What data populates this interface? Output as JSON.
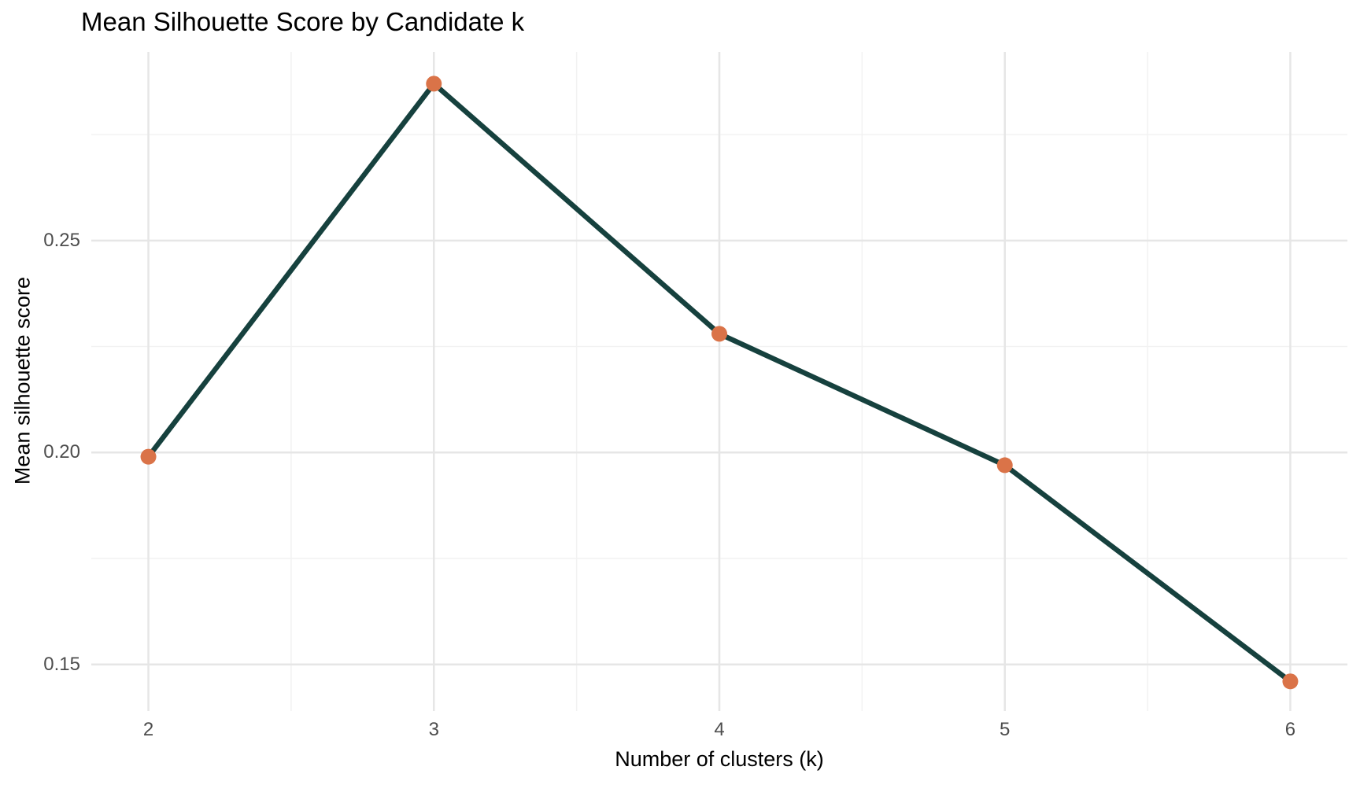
{
  "title": "Mean Silhouette Score by Candidate k",
  "chart_data": {
    "type": "line",
    "title": "Mean Silhouette Score by Candidate k",
    "xlabel": "Number of clusters (k)",
    "ylabel": "Mean silhouette score",
    "x": [
      2,
      3,
      4,
      5,
      6
    ],
    "y": [
      0.199,
      0.287,
      0.228,
      0.197,
      0.146
    ],
    "xlim": [
      1.8,
      6.2
    ],
    "ylim": [
      0.139,
      0.2945
    ],
    "x_ticks": [
      2,
      3,
      4,
      5,
      6
    ],
    "x_tick_labels": [
      "2",
      "3",
      "4",
      "5",
      "6"
    ],
    "y_ticks": [
      0.15,
      0.2,
      0.25
    ],
    "y_tick_labels": [
      "0.15",
      "0.20",
      "0.25"
    ],
    "x_minor_ticks": [
      2.5,
      3.5,
      4.5,
      5.5
    ],
    "y_minor_ticks": [
      0.175,
      0.225,
      0.275
    ],
    "grid": "on",
    "legend": "none",
    "colors": {
      "line": "#16413e",
      "point": "#da7348",
      "grid_major": "#e6e6e6",
      "grid_minor": "#f2f2f2",
      "tick_label": "#4d4d4d",
      "title": "#000000",
      "background": "#ffffff"
    },
    "style": {
      "line_width": 6.5,
      "point_radius": 10,
      "grid_major_width": 2.5,
      "grid_minor_width": 1.5
    }
  }
}
